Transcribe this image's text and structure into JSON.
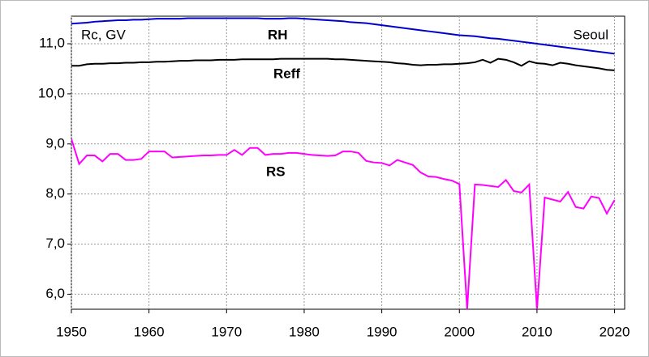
{
  "chart_data": {
    "type": "line",
    "annotations": [
      "Rc, GV",
      "Seoul"
    ],
    "x": [
      1950,
      1951,
      1952,
      1953,
      1954,
      1955,
      1956,
      1957,
      1958,
      1959,
      1960,
      1961,
      1962,
      1963,
      1964,
      1965,
      1966,
      1967,
      1968,
      1969,
      1970,
      1971,
      1972,
      1973,
      1974,
      1975,
      1976,
      1977,
      1978,
      1979,
      1980,
      1981,
      1982,
      1983,
      1984,
      1985,
      1986,
      1987,
      1988,
      1989,
      1990,
      1991,
      1992,
      1993,
      1994,
      1995,
      1996,
      1997,
      1998,
      1999,
      2000,
      2001,
      2002,
      2003,
      2004,
      2005,
      2006,
      2007,
      2008,
      2009,
      2010,
      2011,
      2012,
      2013,
      2014,
      2015,
      2016,
      2017,
      2018,
      2019,
      2020
    ],
    "series": [
      {
        "name": "RH",
        "color": "#0000cc",
        "values": [
          11.4,
          11.41,
          11.42,
          11.44,
          11.45,
          11.46,
          11.47,
          11.47,
          11.48,
          11.48,
          11.49,
          11.5,
          11.5,
          11.5,
          11.5,
          11.51,
          11.51,
          11.51,
          11.51,
          11.51,
          11.51,
          11.51,
          11.51,
          11.51,
          11.51,
          11.5,
          11.5,
          11.5,
          11.51,
          11.51,
          11.5,
          11.49,
          11.48,
          11.47,
          11.46,
          11.45,
          11.43,
          11.42,
          11.41,
          11.39,
          11.37,
          11.35,
          11.33,
          11.31,
          11.29,
          11.27,
          11.25,
          11.23,
          11.21,
          11.19,
          11.17,
          11.16,
          11.15,
          11.13,
          11.11,
          11.1,
          11.08,
          11.06,
          11.04,
          11.02,
          11.0,
          10.98,
          10.96,
          10.94,
          10.92,
          10.9,
          10.88,
          10.86,
          10.84,
          10.82,
          10.8
        ]
      },
      {
        "name": "Reff",
        "color": "#000000",
        "values": [
          10.56,
          10.56,
          10.59,
          10.6,
          10.6,
          10.61,
          10.61,
          10.62,
          10.62,
          10.63,
          10.63,
          10.64,
          10.64,
          10.65,
          10.66,
          10.66,
          10.67,
          10.67,
          10.67,
          10.68,
          10.68,
          10.68,
          10.69,
          10.69,
          10.69,
          10.69,
          10.69,
          10.7,
          10.7,
          10.7,
          10.7,
          10.7,
          10.7,
          10.7,
          10.69,
          10.69,
          10.68,
          10.67,
          10.66,
          10.65,
          10.64,
          10.63,
          10.61,
          10.6,
          10.58,
          10.57,
          10.58,
          10.58,
          10.59,
          10.59,
          10.6,
          10.61,
          10.63,
          10.68,
          10.62,
          10.7,
          10.68,
          10.63,
          10.56,
          10.65,
          10.61,
          10.6,
          10.57,
          10.62,
          10.6,
          10.57,
          10.55,
          10.53,
          10.51,
          10.48,
          10.47
        ]
      },
      {
        "name": "RS",
        "color": "#ff00ff",
        "values": [
          9.1,
          8.6,
          8.77,
          8.77,
          8.65,
          8.8,
          8.8,
          8.68,
          8.68,
          8.7,
          8.85,
          8.85,
          8.85,
          8.73,
          8.74,
          8.75,
          8.76,
          8.77,
          8.77,
          8.78,
          8.78,
          8.88,
          8.78,
          8.92,
          8.92,
          8.78,
          8.8,
          8.8,
          8.82,
          8.82,
          8.8,
          8.78,
          8.77,
          8.76,
          8.77,
          8.85,
          8.85,
          8.82,
          8.66,
          8.63,
          8.62,
          8.57,
          8.68,
          8.63,
          8.58,
          8.43,
          8.35,
          8.34,
          8.3,
          8.27,
          8.2,
          5.7,
          8.19,
          8.18,
          8.16,
          8.14,
          8.28,
          8.06,
          8.03,
          8.19,
          5.7,
          7.93,
          7.89,
          7.85,
          8.04,
          7.74,
          7.71,
          7.95,
          7.92,
          7.61,
          7.88
        ]
      }
    ],
    "xlim": [
      1950,
      2021.3
    ],
    "xticks": [
      1950,
      1960,
      1970,
      1980,
      1990,
      2000,
      2010,
      2020
    ],
    "ylim": [
      5.7,
      11.55
    ],
    "yticks": [
      {
        "value": 6,
        "label": "6,0"
      },
      {
        "value": 7,
        "label": "7,0"
      },
      {
        "value": 8,
        "label": "8,0"
      },
      {
        "value": 9,
        "label": "9,0"
      },
      {
        "value": 10,
        "label": "10,0"
      },
      {
        "value": 11,
        "label": "11,0"
      }
    ],
    "grid": true
  }
}
